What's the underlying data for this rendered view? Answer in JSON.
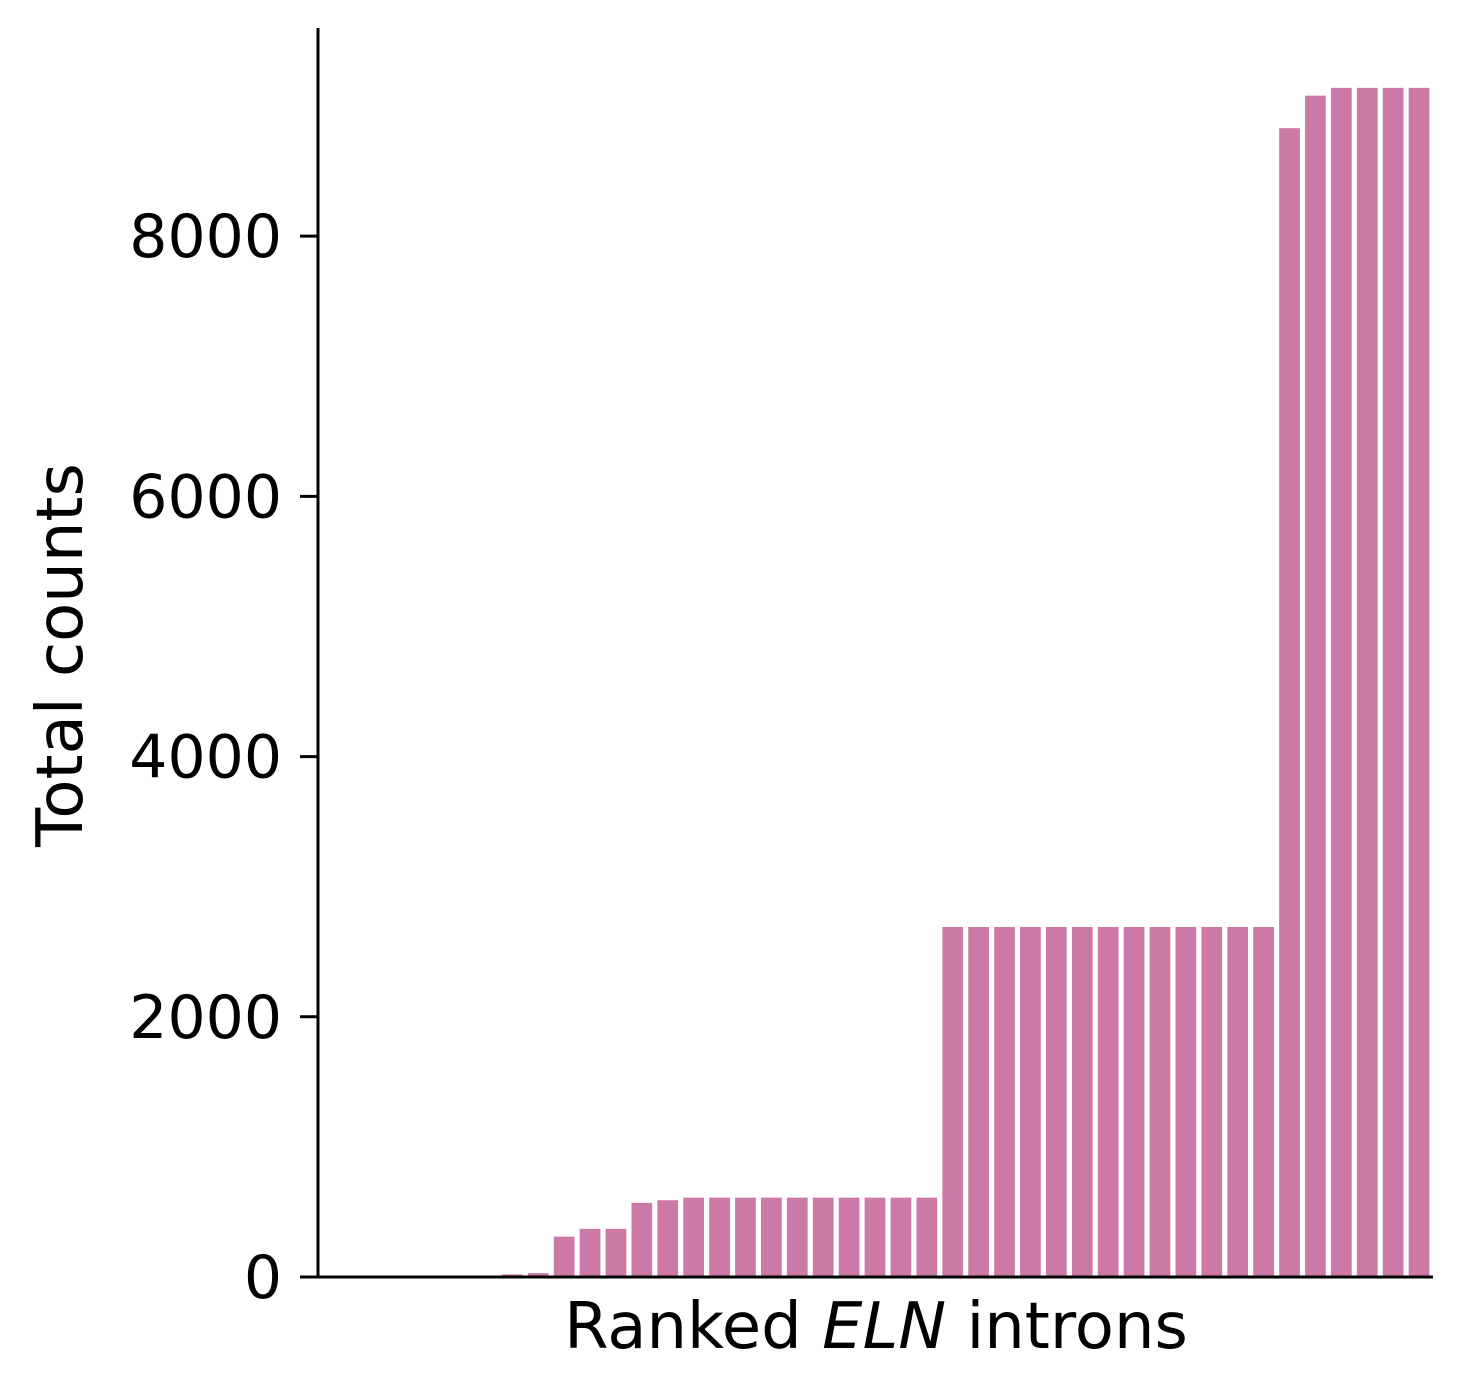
{
  "chart_data": {
    "type": "bar",
    "xlabel_parts": [
      "Ranked ",
      "ELN",
      " introns"
    ],
    "ylabel": "Total counts",
    "yticks": [
      0,
      2000,
      4000,
      6000,
      8000
    ],
    "ylim": [
      0,
      9600
    ],
    "grid": false,
    "bar_color": "#cc79a7",
    "values": [
      0,
      0,
      0,
      0,
      0,
      0,
      0,
      20,
      30,
      310,
      370,
      370,
      570,
      590,
      610,
      610,
      610,
      610,
      610,
      610,
      610,
      610,
      610,
      610,
      2690,
      2690,
      2690,
      2690,
      2690,
      2690,
      2690,
      2690,
      2690,
      2690,
      2690,
      2690,
      2690,
      8830,
      9080,
      9140,
      9140,
      9140,
      9140
    ]
  }
}
